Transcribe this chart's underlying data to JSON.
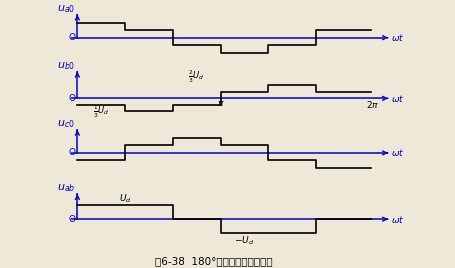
{
  "bg_color": "#ede8d8",
  "axis_color": "#0000cc",
  "waveform_color": "#000000",
  "title": "图6-38  180°导通型输出交流电压",
  "title_fontsize": 7.5,
  "ua0_vals": [
    0.667,
    0.333,
    -0.333,
    -0.667,
    -0.333,
    0.333
  ],
  "ub0_vals": [
    -0.333,
    -0.667,
    -0.333,
    0.333,
    0.667,
    0.333
  ],
  "uc0_vals": [
    -0.333,
    0.333,
    0.667,
    0.333,
    -0.333,
    -0.667
  ],
  "uab_vals": [
    1.0,
    1.0,
    0.0,
    -1.0,
    -1.0,
    0.0
  ]
}
